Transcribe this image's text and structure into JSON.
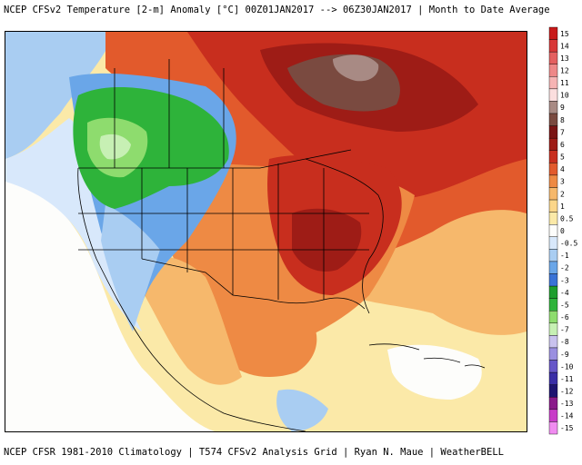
{
  "header": {
    "title": "NCEP CFSv2 Temperature [2-m] Anomaly  [°C] 00Z01JAN2017 --> 06Z30JAN2017 | Month to Date Average"
  },
  "footer": {
    "credits": "NCEP CFSR 1981-2010 Climatology | T574 CFSv2 Analysis Grid | Ryan N. Maue | WeatherBELL"
  },
  "map": {
    "region": "North America",
    "palette": {
      "ocean_neutral": "#fdfdfb",
      "pale_yellow": "#fbe9a8",
      "light_orange": "#f6b86c",
      "orange": "#ee8a44",
      "dark_orange": "#e25a2c",
      "red": "#c82e1e",
      "dark_red": "#9e1c16",
      "maroon": "#7a1414",
      "brown": "#7a4a40",
      "grey_brown": "#a88a84",
      "pale_blue": "#d8e8fb",
      "light_blue": "#a9cdf2",
      "blue": "#6aa6e8",
      "dark_blue": "#3a73d6",
      "light_green": "#8edc6e",
      "green": "#2eb33a",
      "lavender": "#c9c2ee",
      "border": "#000000"
    }
  },
  "legend": {
    "labels": [
      "15",
      "14",
      "13",
      "12",
      "11",
      "10",
      "9",
      "8",
      "7",
      "6",
      "5",
      "4",
      "3",
      "2",
      "1",
      "0.5",
      "0",
      "-0.5",
      "-1",
      "-2",
      "-3",
      "-4",
      "-5",
      "-6",
      "-7",
      "-8",
      "-9",
      "-10",
      "-11",
      "-12",
      "-13",
      "-14",
      "-15"
    ],
    "colors": [
      "#c81a1a",
      "#d83838",
      "#e46060",
      "#ee8888",
      "#f6b4b4",
      "#fbdede",
      "#a88a84",
      "#7a4a40",
      "#7a1414",
      "#9e1c16",
      "#c82e1e",
      "#e25a2c",
      "#ee8a44",
      "#f6b86c",
      "#fbd68a",
      "#fbe9a8",
      "#fdfdfb",
      "#d8e8fb",
      "#a9cdf2",
      "#6aa6e8",
      "#3a73d6",
      "#1e9e2e",
      "#2eb33a",
      "#8edc6e",
      "#c7f0b4",
      "#c9c2ee",
      "#9a8fe0",
      "#6656c8",
      "#3a2ea6",
      "#1e1470",
      "#8a1a8a",
      "#c83cc8",
      "#f08cf0"
    ]
  }
}
